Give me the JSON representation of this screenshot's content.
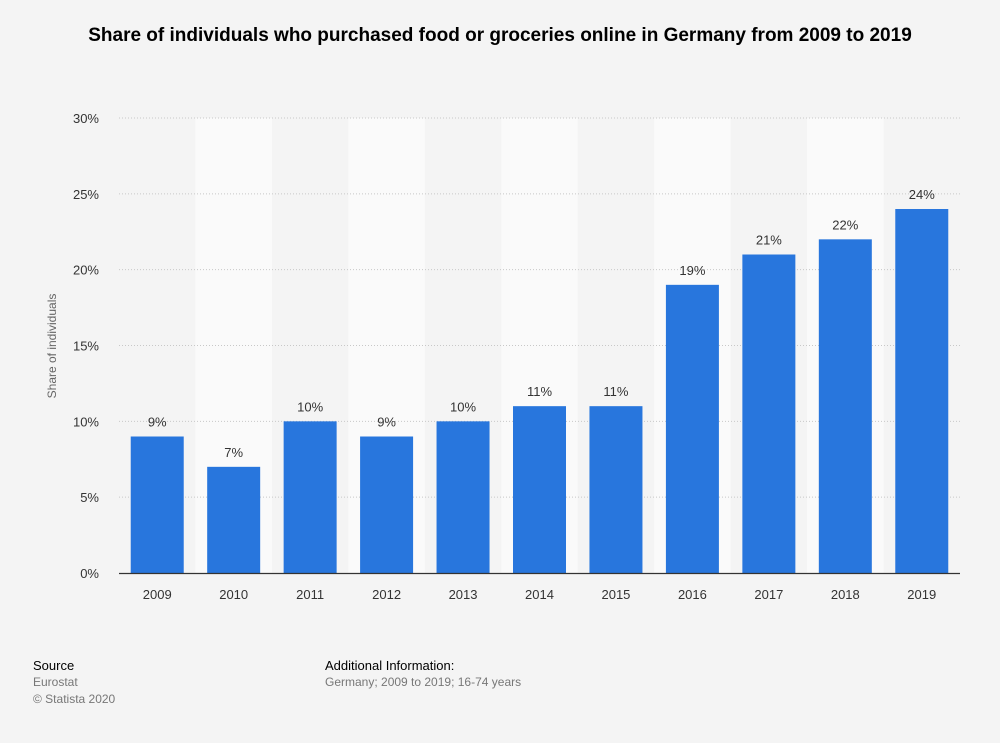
{
  "chart_data": {
    "type": "bar",
    "title": "Share of individuals who purchased food or groceries online in Germany from 2009 to 2019",
    "xlabel": "",
    "ylabel": "Share of individuals",
    "categories": [
      "2009",
      "2010",
      "2011",
      "2012",
      "2013",
      "2014",
      "2015",
      "2016",
      "2017",
      "2018",
      "2019"
    ],
    "values": [
      9,
      7,
      10,
      9,
      10,
      11,
      11,
      19,
      21,
      22,
      24
    ],
    "data_labels": [
      "9%",
      "7%",
      "10%",
      "9%",
      "10%",
      "11%",
      "11%",
      "19%",
      "21%",
      "22%",
      "24%"
    ],
    "ylim": [
      0,
      30
    ],
    "y_ticks": [
      0,
      5,
      10,
      15,
      20,
      25,
      30
    ],
    "y_tick_labels": [
      "0%",
      "5%",
      "10%",
      "15%",
      "20%",
      "25%",
      "30%"
    ],
    "grid": true,
    "bar_color": "#2876dd"
  },
  "footer": {
    "source_heading": "Source",
    "source_name": "Eurostat",
    "copyright": "© Statista 2020",
    "info_heading": "Additional Information:",
    "info_text": "Germany; 2009 to 2019; 16-74 years"
  }
}
